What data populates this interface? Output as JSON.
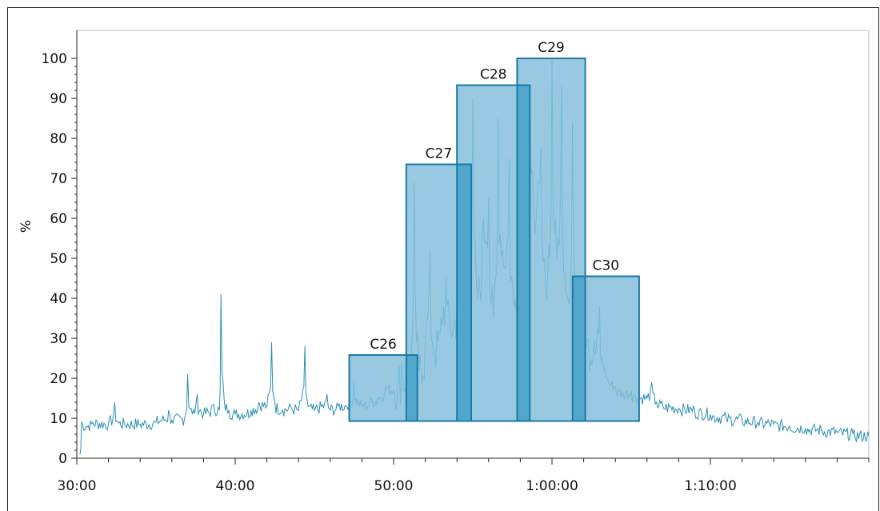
{
  "chart_data": {
    "type": "area",
    "ylabel": "%",
    "xlabel": "",
    "xlim_minutes": [
      30,
      80
    ],
    "ylim": [
      0,
      107
    ],
    "x_ticks": [
      {
        "minutes": 30,
        "label": "30:00"
      },
      {
        "minutes": 40,
        "label": "40:00"
      },
      {
        "minutes": 50,
        "label": "50:00"
      },
      {
        "minutes": 60,
        "label": "1:00:00"
      },
      {
        "minutes": 70,
        "label": "1:10:00"
      }
    ],
    "y_ticks": [
      0,
      10,
      20,
      30,
      40,
      50,
      60,
      70,
      80,
      90,
      100
    ],
    "colors": {
      "trace": "#2a8fb0",
      "fraction_fill": "#86bfdc",
      "fraction_overlap": "#4aa3c9",
      "fraction_border": "#1a7aa5",
      "frame": "#222222"
    },
    "fractions": [
      {
        "label": "C26",
        "start_min": 47.2,
        "end_min": 51.5,
        "y_bottom": 9.3,
        "y_top": 25.8
      },
      {
        "label": "C27",
        "start_min": 50.8,
        "end_min": 54.9,
        "y_bottom": 9.3,
        "y_top": 73.5
      },
      {
        "label": "C28",
        "start_min": 54.0,
        "end_min": 58.6,
        "y_bottom": 9.3,
        "y_top": 93.3
      },
      {
        "label": "C29",
        "start_min": 57.8,
        "end_min": 62.1,
        "y_bottom": 9.3,
        "y_top": 100.0
      },
      {
        "label": "C30",
        "start_min": 61.3,
        "end_min": 65.5,
        "y_bottom": 9.3,
        "y_top": 45.5
      }
    ],
    "trace": {
      "name": "",
      "x_min": [
        30.2,
        30.3,
        30.6,
        31,
        32,
        32.4,
        32.6,
        33,
        34,
        35,
        35.8,
        36,
        36.8,
        37,
        37.3,
        37.6,
        38,
        38.5,
        39,
        39.1,
        39.3,
        39.6,
        40,
        41,
        41.5,
        42,
        42.3,
        42.5,
        43,
        43.5,
        44,
        44.4,
        44.6,
        45,
        45.8,
        46,
        46.5,
        47,
        47.5,
        48,
        48.5,
        49,
        49.5,
        50,
        50.5,
        51,
        51.3,
        51.6,
        52,
        52.3,
        52.6,
        53,
        53.3,
        53.6,
        54,
        54.3,
        54.6,
        55,
        55.3,
        55.6,
        56,
        56.3,
        56.6,
        57,
        57.3,
        57.6,
        58,
        58.3,
        58.6,
        59,
        59.3,
        59.6,
        60,
        60.3,
        60.6,
        61,
        61.3,
        61.6,
        62,
        62.3,
        62.6,
        63,
        63.5,
        64,
        64.5,
        65,
        65.5,
        66,
        66.3,
        66.6,
        67,
        68,
        69,
        70,
        71,
        72,
        73,
        74,
        75,
        76,
        77,
        78,
        79,
        80
      ],
      "y": [
        1,
        9,
        8,
        9,
        8.5,
        14,
        9,
        8.5,
        8.5,
        9,
        12,
        9.5,
        10,
        21,
        11,
        16,
        11,
        13,
        12,
        41,
        15,
        12,
        11,
        12,
        14,
        13,
        29,
        14,
        12,
        13,
        12,
        28,
        13,
        12,
        16,
        12,
        13,
        13,
        19,
        13,
        14,
        15,
        18,
        17,
        24,
        18,
        69,
        22,
        30,
        52,
        26,
        35,
        45,
        32,
        40,
        70,
        30,
        90,
        40,
        55,
        65,
        35,
        85,
        48,
        75,
        38,
        70,
        55,
        90,
        60,
        78,
        42,
        100,
        50,
        93,
        40,
        84,
        35,
        45,
        30,
        25,
        38,
        20,
        18,
        16,
        17,
        15,
        15,
        19,
        14,
        13,
        12.5,
        12,
        11,
        10,
        9.5,
        9,
        8.5,
        8,
        7.5,
        7,
        6.5,
        6,
        5.5
      ]
    }
  }
}
